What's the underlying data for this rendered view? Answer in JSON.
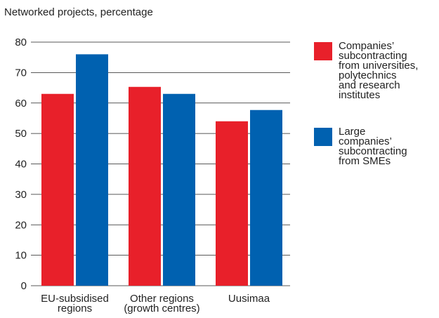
{
  "chart_data": {
    "type": "bar",
    "title": "Networked projects, percentage",
    "categories": [
      "EU-subsidised\nregions",
      "Other regions\n(growth centres)",
      "Uusimaa"
    ],
    "series": [
      {
        "name": "Companies’\nsubcontracting\nfrom universities,\npolytechnics\nand research\ninstitutes",
        "color": "#e8202a",
        "values": [
          63,
          65.3,
          54
        ]
      },
      {
        "name": "Large\ncompanies’\nsubcontracting\nfrom SMEs",
        "color": "#0061b0",
        "values": [
          76,
          63,
          57.7
        ]
      }
    ],
    "ylim": [
      0,
      80
    ],
    "yticks": [
      0,
      10,
      20,
      30,
      40,
      50,
      60,
      70,
      80
    ],
    "grid": true,
    "legend": "right"
  }
}
